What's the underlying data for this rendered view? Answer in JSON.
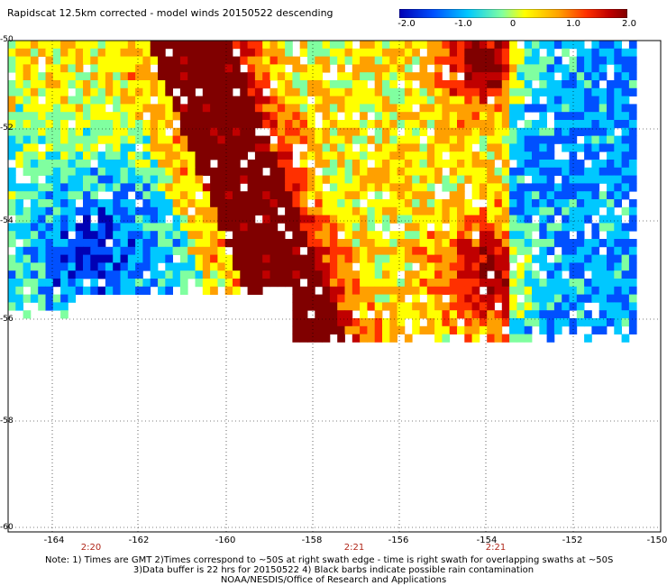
{
  "title": "Rapidscat 12.5km corrected - model winds 20150522 descending",
  "colorbar": {
    "ticks": [
      "-2.0",
      "-1.0",
      "0",
      "1.0",
      "2.0"
    ],
    "colors": [
      "#0000b4",
      "#0050ff",
      "#00c8ff",
      "#80ffa0",
      "#ffff00",
      "#ffa000",
      "#ff3000",
      "#c00000",
      "#800000"
    ]
  },
  "lat_labels": [
    "-50",
    "-52",
    "-54",
    "-56",
    "-58",
    "-60"
  ],
  "lon_labels": [
    "-164",
    "-162",
    "-160",
    "-158",
    "-156",
    "-154",
    "-152",
    "-150"
  ],
  "time_labels": [
    {
      "text": "2:20",
      "lon": -162.8
    },
    {
      "text": "2:21",
      "lon": -157.0
    },
    {
      "text": "2:21",
      "lon": -153.8
    }
  ],
  "notes": {
    "line1": "Note: 1) Times are GMT 2)Times correspond to ~50S at right swath edge - time is right swath for overlapping swaths at ~50S",
    "line2": "3)Data buffer is 22 hrs for 20150522 4) Black barbs indicate possible rain contamination",
    "line3": "NOAA/NESDIS/Office of Research and Applications"
  },
  "map_extent": {
    "lon_min": -165,
    "lon_max": -150,
    "lat_min": -60,
    "lat_max": -50
  },
  "field_description_colors": {
    "high": "#800000",
    "low": "#0000b4",
    "missing": "#ffffff"
  }
}
